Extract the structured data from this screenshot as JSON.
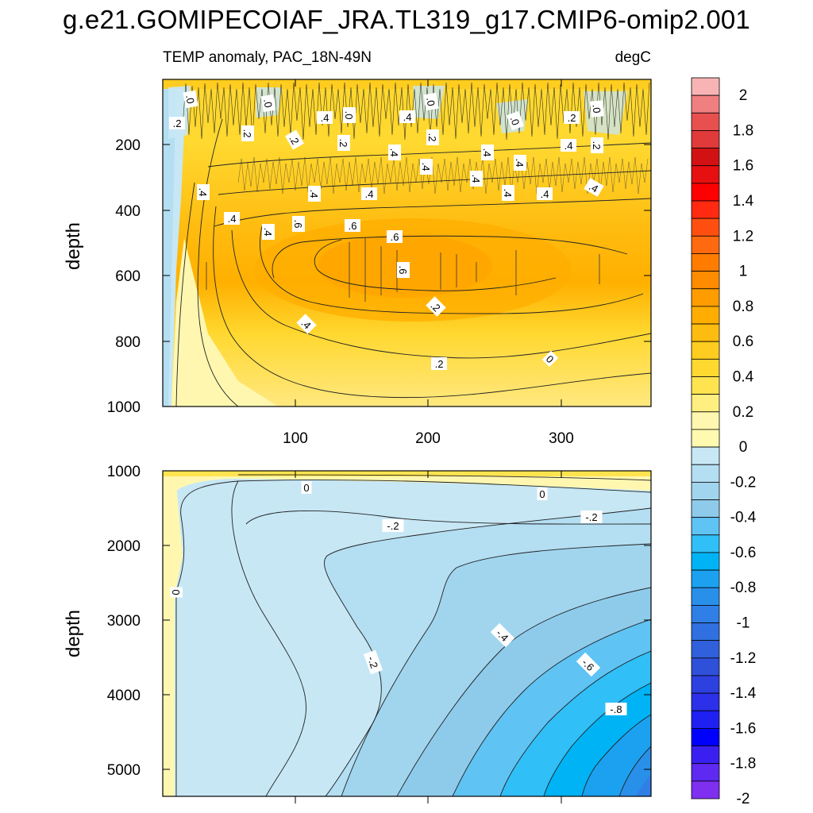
{
  "title": "g.e21.GOMIPECOIAF_JRA.TL319_g17.CMIP6-omip2.001",
  "subtitle_left": "TEMP anomaly, PAC_18N-49N",
  "subtitle_right": "degC",
  "chart_data": [
    {
      "type": "heatmap",
      "panel": "upper",
      "ylabel": "depth",
      "xlabel": "",
      "xlim": [
        0,
        366
      ],
      "ylim": [
        1000,
        0
      ],
      "x_ticks": [
        "100",
        "200",
        "300"
      ],
      "y_ticks": [
        "200",
        "400",
        "600",
        "800",
        "1000"
      ],
      "contour_labels": [
        ".0",
        ".0",
        ".0",
        ".0",
        ".0",
        ".0",
        ".2",
        ".2",
        ".2",
        ".2",
        ".2",
        ".2",
        ".2",
        ".4",
        ".4",
        ".4",
        ".4",
        ".4",
        ".4",
        ".4",
        ".4",
        ".4",
        ".4",
        ".4",
        ".4",
        ".4",
        ".4",
        ".6",
        ".6",
        ".6",
        ".6",
        ".2",
        ".4",
        ".4",
        ".4",
        ".2",
        "0"
      ]
    },
    {
      "type": "heatmap",
      "panel": "lower",
      "ylabel": "depth",
      "xlabel": "",
      "xlim": [
        0,
        366
      ],
      "ylim": [
        5350,
        1000
      ],
      "x_ticks": [],
      "y_ticks": [
        "1000",
        "2000",
        "3000",
        "4000",
        "5000"
      ],
      "contour_labels": [
        "0",
        "0",
        "-.2",
        "-.2",
        "-.2",
        "0",
        "-.4",
        "-.6",
        "-.8"
      ]
    }
  ],
  "colorbar": {
    "labels": [
      "2",
      "1.8",
      "1.6",
      "1.4",
      "1.2",
      "1",
      "0.8",
      "0.6",
      "0.4",
      "0.2",
      "0",
      "-0.2",
      "-0.4",
      "-0.6",
      "-0.8",
      "-1",
      "-1.2",
      "-1.4",
      "-1.6",
      "-1.8",
      "-2"
    ],
    "colors": [
      "#f8b4b4",
      "#f08080",
      "#e85050",
      "#e03a3a",
      "#d21212",
      "#e61010",
      "#ff0000",
      "#ff2a10",
      "#ff4f10",
      "#ff6a10",
      "#ff7c00",
      "#ff8c00",
      "#ff9c00",
      "#ffad00",
      "#ffbc10",
      "#ffcc20",
      "#ffd830",
      "#ffe450",
      "#ffee80",
      "#fff7b0",
      "#fffab0",
      "#c7e7f5",
      "#b4def2",
      "#a1d5ee",
      "#8ecbeb",
      "#5fc3f4",
      "#30bff7",
      "#00b3f5",
      "#1ca1f0",
      "#2990ea",
      "#2f7fe6",
      "#3070e0",
      "#3060dc",
      "#2f50d9",
      "#2d40e0",
      "#2c30e8",
      "#1f20f2",
      "#0000ff",
      "#3a20f0",
      "#5e29f0",
      "#7f2ff0"
    ]
  }
}
